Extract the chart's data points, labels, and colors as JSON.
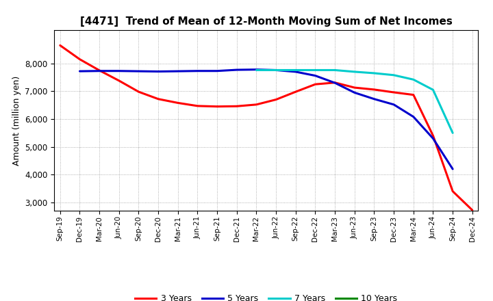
{
  "title": "[4471]  Trend of Mean of 12-Month Moving Sum of Net Incomes",
  "ylabel": "Amount (million yen)",
  "background_color": "#ffffff",
  "grid_color": "#999999",
  "ylim": [
    2700,
    9200
  ],
  "yticks": [
    3000,
    4000,
    5000,
    6000,
    7000,
    8000
  ],
  "x_labels": [
    "Sep-19",
    "Dec-19",
    "Mar-20",
    "Jun-20",
    "Sep-20",
    "Dec-20",
    "Mar-21",
    "Jun-21",
    "Sep-21",
    "Dec-21",
    "Mar-22",
    "Jun-22",
    "Sep-22",
    "Dec-22",
    "Mar-23",
    "Jun-23",
    "Sep-23",
    "Dec-23",
    "Mar-24",
    "Jun-24",
    "Sep-24",
    "Dec-24"
  ],
  "series": {
    "3 Years": {
      "color": "#ff0000",
      "values": [
        8650,
        8150,
        7750,
        7380,
        6980,
        6720,
        6580,
        6470,
        6450,
        6460,
        6520,
        6700,
        6980,
        7250,
        7310,
        7130,
        7060,
        6960,
        6870,
        5400,
        3400,
        2720
      ]
    },
    "5 Years": {
      "color": "#0000cc",
      "values": [
        null,
        7720,
        7730,
        7730,
        7720,
        7710,
        7720,
        7730,
        7730,
        7770,
        7780,
        7760,
        7700,
        7560,
        7300,
        6950,
        6720,
        6520,
        6080,
        5300,
        4200,
        null
      ]
    },
    "7 Years": {
      "color": "#00cccc",
      "values": [
        null,
        null,
        null,
        null,
        null,
        null,
        null,
        null,
        null,
        null,
        7760,
        7760,
        7760,
        7760,
        7760,
        7700,
        7650,
        7580,
        7420,
        7050,
        5500,
        null
      ]
    },
    "10 Years": {
      "color": "#008800",
      "values": [
        null,
        null,
        null,
        null,
        null,
        null,
        null,
        null,
        null,
        null,
        null,
        null,
        null,
        null,
        null,
        null,
        null,
        null,
        null,
        null,
        null,
        null
      ]
    }
  },
  "legend_entries": [
    "3 Years",
    "5 Years",
    "7 Years",
    "10 Years"
  ],
  "legend_colors": [
    "#ff0000",
    "#0000cc",
    "#00cccc",
    "#008800"
  ]
}
